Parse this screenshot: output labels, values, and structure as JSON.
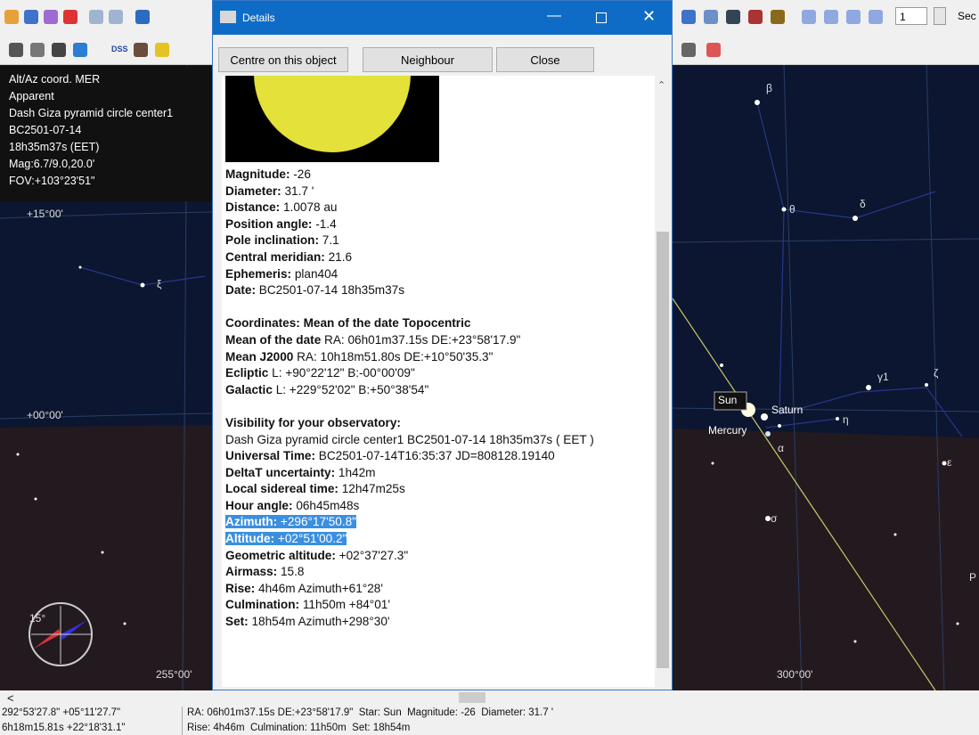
{
  "toolbar": {
    "dss": "DSS",
    "page_field": "1",
    "partial_label": "Sec"
  },
  "info_panel": [
    "Alt/Az coord. MER",
    "Apparent",
    "Dash Giza pyramid circle center1",
    "BC2501-07-14",
    "18h35m37s (EET)",
    "Mag:6.7/9.0,20.0'",
    "FOV:+103°23'51\""
  ],
  "sky_labels": {
    "dec_15": "+15°00'",
    "dec_0": "+00°00'",
    "az_255": "255°00'",
    "az_300": "300°00'",
    "sun": "Sun",
    "saturn": "Saturn",
    "mercury": "Mercury",
    "beta": "β",
    "theta": "θ",
    "delta": "δ",
    "gamma1": "γ1",
    "zeta": "ζ",
    "eta": "η",
    "xi": "ξ",
    "alpha": "α",
    "epsilon": "ε",
    "sigma": "σ",
    "p": "P",
    "compass": "15°"
  },
  "dialog": {
    "title": "Details",
    "buttons": [
      "Centre on this object",
      "Neighbour",
      "Close"
    ],
    "sections": [
      {
        "lines": [
          {
            "label": "Magnitude:",
            "value": "-26"
          },
          {
            "label": "Diameter:",
            "value": "31.7 '"
          },
          {
            "label": "Distance:",
            "value": "1.0078 au"
          },
          {
            "label": "Position angle:",
            "value": "-1.4"
          },
          {
            "label": "Pole inclination:",
            "value": "7.1"
          },
          {
            "label": "Central meridian:",
            "value": "21.6"
          },
          {
            "label": "Ephemeris:",
            "value": "plan404"
          },
          {
            "label": "Date:",
            "value": "BC2501-07-14 18h35m37s"
          }
        ]
      },
      {
        "heading": "Coordinates: Mean of the date Topocentric",
        "lines": [
          {
            "label": "Mean of the date",
            "value": "RA: 06h01m37.15s DE:+23°58'17.9\""
          },
          {
            "label": "Mean J2000",
            "value": "RA: 10h18m51.80s DE:+10°50'35.3\""
          },
          {
            "label": "Ecliptic",
            "value": "L: +90°22'12\" B:-00°00'09\""
          },
          {
            "label": "Galactic",
            "value": "L: +229°52'02\" B:+50°38'54\""
          }
        ]
      },
      {
        "heading": "Visibility for your observatory:",
        "text": "Dash Giza pyramid circle center1 BC2501-07-14 18h35m37s ( EET )",
        "lines": [
          {
            "label": "Universal Time:",
            "value": "BC2501-07-14T16:35:37 JD=808128.19140"
          },
          {
            "label": "DeltaT uncertainty:",
            "value": "1h42m"
          },
          {
            "label": "Local sidereal time:",
            "value": "12h47m25s"
          },
          {
            "label": "Hour angle:",
            "value": "06h45m48s"
          },
          {
            "label": "Azimuth:",
            "value": "+296°17'50.8\"",
            "highlighted": true
          },
          {
            "label": "Altitude:",
            "value": "+02°51'00.2\"",
            "highlighted": true
          },
          {
            "label": "Geometric altitude:",
            "value": "+02°37'27.3\""
          },
          {
            "label": "Airmass:",
            "value": "15.8"
          },
          {
            "label": "Rise:",
            "value": "4h46m Azimuth+61°28'"
          },
          {
            "label": "Culmination:",
            "value": "11h50m +84°01'"
          },
          {
            "label": "Set:",
            "value": "18h54m Azimuth+298°30'"
          }
        ]
      }
    ]
  },
  "status_bar": {
    "left": [
      "292°53'27.8\" +05°11'27.7\"",
      "6h18m15.81s +22°18'31.1\""
    ],
    "right": [
      "RA: 06h01m37.15s DE:+23°58'17.9\"  Star: Sun  Magnitude: -26  Diameter: 31.7 '",
      "Rise: 4h46m  Culmination: 11h50m  Set: 18h54m"
    ]
  }
}
